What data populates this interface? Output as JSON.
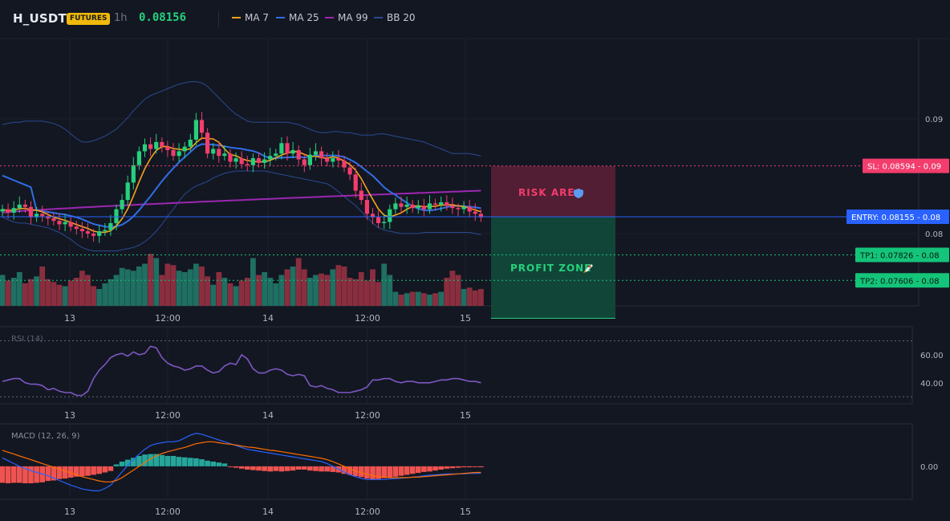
{
  "header": {
    "symbol": "H_USDT",
    "badge": "FUTURES",
    "timeframe": "1h",
    "last_price": "0.08156",
    "legend": [
      {
        "label": "MA 7",
        "color": "#f7a21b"
      },
      {
        "label": "MA 25",
        "color": "#2f6ee5"
      },
      {
        "label": "MA 99",
        "color": "#9c27b0"
      },
      {
        "label": "BB 20",
        "color": "#2a4a8f"
      }
    ]
  },
  "colors": {
    "up": "#26d07c",
    "down": "#f23d6d",
    "vol_up": "#1f6f62",
    "vol_down": "#8a2e3f",
    "sl": "#f23d6d",
    "entry": "#2962ff",
    "tp": "#14c479"
  },
  "zones": {
    "risk_label": "RISK AREA",
    "profit_label": "PROFIT ZONE"
  },
  "levels": {
    "sl": {
      "label": "SL: 0.08594",
      "suffix": "0.09",
      "value": 0.08594
    },
    "entry": {
      "label": "ENTRY: 0.08155",
      "suffix": "0.08",
      "value": 0.08155
    },
    "tp1": {
      "label": "TP1: 0.07826",
      "suffix": "0.08",
      "value": 0.07826
    },
    "tp2": {
      "label": "TP2: 0.07606",
      "suffix": "0.08",
      "value": 0.07606
    }
  },
  "chart_data": [
    {
      "type": "candlestick",
      "x_ticks": [
        "13",
        "12:00",
        "14",
        "12:00",
        "15"
      ],
      "y_ticks": [
        "0.09",
        "0.08"
      ],
      "grid": true,
      "close": [
        0.0822,
        0.0819,
        0.0823,
        0.0826,
        0.0824,
        0.0815,
        0.0818,
        0.0816,
        0.0814,
        0.0812,
        0.0809,
        0.0811,
        0.0807,
        0.0805,
        0.0803,
        0.0801,
        0.0799,
        0.0803,
        0.0804,
        0.081,
        0.0822,
        0.083,
        0.0845,
        0.086,
        0.0872,
        0.0878,
        0.0874,
        0.088,
        0.0876,
        0.0873,
        0.0868,
        0.0872,
        0.0876,
        0.0882,
        0.0899,
        0.0888,
        0.087,
        0.0874,
        0.0868,
        0.087,
        0.0863,
        0.0866,
        0.0861,
        0.086,
        0.0866,
        0.0862,
        0.0865,
        0.0868,
        0.087,
        0.0879,
        0.087,
        0.0873,
        0.0865,
        0.086,
        0.0869,
        0.0872,
        0.0866,
        0.0863,
        0.0866,
        0.0864,
        0.0858,
        0.0852,
        0.0838,
        0.083,
        0.0818,
        0.0815,
        0.081,
        0.0811,
        0.0822,
        0.0827,
        0.0824,
        0.0826,
        0.0823,
        0.0825,
        0.0822,
        0.0827,
        0.0826,
        0.0828,
        0.0825,
        0.0823,
        0.0822,
        0.0824,
        0.082,
        0.0818,
        0.0815
      ],
      "volume_caption": "",
      "volume": [
        22,
        18,
        20,
        24,
        16,
        19,
        21,
        28,
        19,
        17,
        15,
        14,
        18,
        20,
        25,
        22,
        14,
        12,
        16,
        19,
        22,
        27,
        26,
        25,
        28,
        30,
        37,
        34,
        22,
        30,
        29,
        25,
        24,
        26,
        30,
        28,
        21,
        15,
        24,
        20,
        16,
        14,
        18,
        20,
        34,
        22,
        24,
        20,
        16,
        22,
        26,
        28,
        34,
        26,
        20,
        22,
        23,
        22,
        26,
        29,
        28,
        20,
        19,
        24,
        18,
        26,
        17,
        30,
        22,
        10,
        8,
        9,
        10,
        10,
        9,
        8,
        9,
        10,
        20,
        25,
        22,
        12,
        13,
        11,
        12
      ],
      "bb_upper": [
        0.0895,
        0.0896,
        0.0897,
        0.0897,
        0.0898,
        0.0898,
        0.0898,
        0.0898,
        0.0897,
        0.0896,
        0.0894,
        0.0891,
        0.0887,
        0.0883,
        0.088,
        0.088,
        0.0881,
        0.0883,
        0.0885,
        0.0888,
        0.0891,
        0.0896,
        0.0901,
        0.0907,
        0.0912,
        0.0917,
        0.092,
        0.0922,
        0.0924,
        0.0926,
        0.0928,
        0.093,
        0.0931,
        0.0932,
        0.0932,
        0.0931,
        0.0928,
        0.0923,
        0.0918,
        0.0913,
        0.0908,
        0.0904,
        0.0901,
        0.0898,
        0.0897,
        0.0897,
        0.0897,
        0.0897,
        0.0897,
        0.0897,
        0.0897,
        0.0896,
        0.0895,
        0.0893,
        0.0891,
        0.0889,
        0.0888,
        0.0888,
        0.0889,
        0.0889,
        0.0888,
        0.0888,
        0.0887,
        0.0886,
        0.0886,
        0.0886,
        0.0887,
        0.0887,
        0.0886,
        0.0885,
        0.0884,
        0.0883,
        0.0882,
        0.0881,
        0.088,
        0.0878,
        0.0876,
        0.0874,
        0.0872,
        0.087,
        0.087,
        0.087,
        0.087,
        0.0869,
        0.0868
      ],
      "bb_lower": [
        0.0815,
        0.0813,
        0.0811,
        0.081,
        0.081,
        0.0809,
        0.0808,
        0.0807,
        0.0806,
        0.0804,
        0.0802,
        0.0799,
        0.0796,
        0.0792,
        0.0789,
        0.0787,
        0.0786,
        0.0786,
        0.0786,
        0.0786,
        0.0786,
        0.0787,
        0.0788,
        0.0789,
        0.0791,
        0.0794,
        0.0798,
        0.0803,
        0.0809,
        0.0816,
        0.0822,
        0.0829,
        0.0835,
        0.0839,
        0.0842,
        0.0844,
        0.0846,
        0.0849,
        0.0851,
        0.0853,
        0.0854,
        0.0855,
        0.0855,
        0.0855,
        0.0855,
        0.0855,
        0.0855,
        0.0854,
        0.0853,
        0.0852,
        0.0851,
        0.085,
        0.0849,
        0.0848,
        0.0847,
        0.0846,
        0.0845,
        0.0844,
        0.0841,
        0.0837,
        0.0833,
        0.0829,
        0.0825,
        0.082,
        0.0815,
        0.081,
        0.0806,
        0.0804,
        0.0803,
        0.0802,
        0.0801,
        0.0801,
        0.0801,
        0.0801,
        0.0802,
        0.0802,
        0.0802,
        0.0802,
        0.0802,
        0.0802,
        0.0802,
        0.0802,
        0.0802,
        0.0801,
        0.08
      ]
    },
    {
      "type": "line",
      "title": "RSI (14)",
      "y_ticks": [
        "60.00",
        "40.00"
      ],
      "x_ticks": [
        "13",
        "12:00",
        "14",
        "12:00",
        "15"
      ],
      "ylim": [
        25,
        80
      ],
      "y_tick_values": [
        60,
        40
      ],
      "band": [
        70,
        30
      ],
      "values": [
        41,
        42,
        43,
        43,
        40,
        39,
        39,
        38,
        35,
        36,
        34,
        33,
        33,
        31,
        31,
        34,
        43,
        49,
        53,
        58,
        60,
        61,
        59,
        62,
        60,
        61,
        66,
        65,
        58,
        54,
        52,
        51,
        49,
        50,
        52,
        52,
        49,
        47,
        48,
        52,
        54,
        53,
        60,
        57,
        50,
        47,
        47,
        49,
        50,
        49,
        46,
        45,
        46,
        45,
        38,
        37,
        38,
        36,
        35,
        33,
        33,
        33,
        34,
        35,
        37,
        42,
        42,
        43,
        43,
        41,
        40,
        41,
        41,
        40,
        40,
        40,
        41,
        42,
        42,
        43,
        43,
        42,
        41,
        41,
        40
      ]
    },
    {
      "type": "histogram",
      "title": "MACD (12, 26, 9)",
      "y_ticks": [
        "0.00"
      ],
      "x_ticks": [
        "13",
        "12:00",
        "14",
        "12:00",
        "15"
      ],
      "ylim": [
        -0.0007,
        0.0009
      ],
      "histogram": [
        -0.00035,
        -0.00036,
        -0.00035,
        -0.00035,
        -0.00036,
        -0.00036,
        -0.00035,
        -0.00034,
        -0.00031,
        -0.0003,
        -0.00027,
        -0.00026,
        -0.00024,
        -0.00022,
        -0.00021,
        -0.0002,
        -0.00018,
        -0.00016,
        -0.00013,
        -0.0001,
        4e-05,
        0.0001,
        0.00014,
        0.00018,
        0.00022,
        0.00025,
        0.00026,
        0.00026,
        0.00024,
        0.00022,
        0.00022,
        0.0002,
        0.00019,
        0.00018,
        0.00017,
        0.00015,
        0.00012,
        0.0001,
        8e-05,
        6e-05,
        -1e-05,
        -3e-05,
        -5e-05,
        -7e-05,
        -8e-05,
        -9e-05,
        -0.0001,
        -0.00011,
        -0.0001,
        -0.00011,
        -0.0001,
        -9e-05,
        -7e-05,
        -7e-05,
        -9e-05,
        -0.0001,
        -0.00011,
        -0.00011,
        -0.00012,
        -0.00013,
        -0.00016,
        -0.00018,
        -0.00021,
        -0.00023,
        -0.00026,
        -0.00028,
        -0.00027,
        -0.00025,
        -0.00024,
        -0.00022,
        -0.0002,
        -0.00018,
        -0.00016,
        -0.00014,
        -0.00012,
        -0.00011,
        -9e-05,
        -7e-05,
        -5e-05,
        -4e-05,
        -3e-05,
        -2e-05,
        -2e-05,
        -1e-05,
        -2e-05
      ],
      "macd": [
        0.00018,
        0.00012,
        6e-05,
        0.0,
        -5e-05,
        -9e-05,
        -0.00013,
        -0.00016,
        -0.0002,
        -0.00025,
        -0.0003,
        -0.00035,
        -0.0004,
        -0.00044,
        -0.00048,
        -0.0005,
        -0.00052,
        -0.00052,
        -0.00047,
        -0.0004,
        -0.00026,
        -0.00012,
        2e-05,
        0.00014,
        0.00026,
        0.00036,
        0.00044,
        0.00048,
        0.0005,
        0.00052,
        0.00052,
        0.00054,
        0.0006,
        0.00066,
        0.0007,
        0.00068,
        0.00064,
        0.0006,
        0.00056,
        0.00052,
        0.00048,
        0.00044,
        0.0004,
        0.00036,
        0.00034,
        0.00032,
        0.0003,
        0.00028,
        0.00026,
        0.00024,
        0.00022,
        0.0002,
        0.00018,
        0.00016,
        0.00014,
        0.00012,
        0.0001,
        6e-05,
        0.0,
        -6e-05,
        -0.00012,
        -0.00018,
        -0.00022,
        -0.00026,
        -0.00028,
        -0.00028,
        -0.00028,
        -0.00028,
        -0.00027,
        -0.00026,
        -0.00025,
        -0.00024,
        -0.00023,
        -0.00022,
        -0.0002,
        -0.00019,
        -0.00018,
        -0.00017,
        -0.00016,
        -0.00016,
        -0.00016,
        -0.00016,
        -0.00015,
        -0.00015,
        -0.00015
      ],
      "signal": [
        0.00034,
        0.0003,
        0.00026,
        0.00022,
        0.00018,
        0.00014,
        0.0001,
        6e-05,
        2e-05,
        -2e-05,
        -6e-05,
        -0.0001,
        -0.00014,
        -0.00018,
        -0.00022,
        -0.00025,
        -0.00028,
        -0.00031,
        -0.00033,
        -0.00033,
        -0.0003,
        -0.00024,
        -0.00016,
        -8e-05,
        0.0,
        8e-05,
        0.00016,
        0.00022,
        0.00027,
        0.00031,
        0.00034,
        0.00037,
        0.0004,
        0.00044,
        0.00048,
        0.0005,
        0.00052,
        0.00052,
        0.0005,
        0.00048,
        0.00047,
        0.00045,
        0.00043,
        0.00041,
        0.0004,
        0.00038,
        0.00036,
        0.00034,
        0.00033,
        0.00031,
        0.00029,
        0.00027,
        0.00025,
        0.00023,
        0.00021,
        0.00019,
        0.00017,
        0.00014,
        0.0001,
        5e-05,
        0.0,
        -5e-05,
        -0.0001,
        -0.00014,
        -0.00017,
        -0.0002,
        -0.00022,
        -0.00023,
        -0.00024,
        -0.00024,
        -0.00024,
        -0.00024,
        -0.00023,
        -0.00023,
        -0.00022,
        -0.00021,
        -0.0002,
        -0.00019,
        -0.00018,
        -0.00017,
        -0.00016,
        -0.00015,
        -0.00014,
        -0.00013,
        -0.00013
      ]
    }
  ]
}
